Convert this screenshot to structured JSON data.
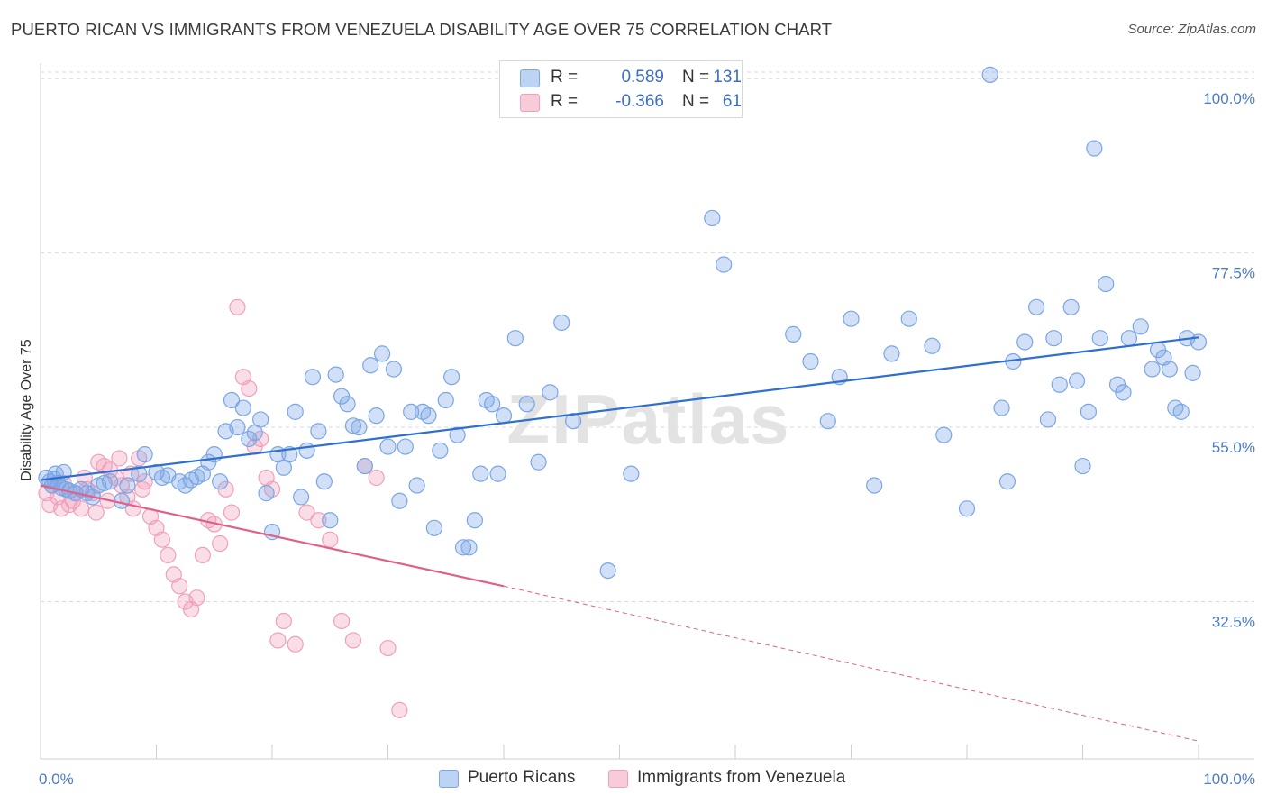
{
  "header": {
    "title": "PUERTO RICAN VS IMMIGRANTS FROM VENEZUELA DISABILITY AGE OVER 75 CORRELATION CHART",
    "source": "Source: ZipAtlas.com"
  },
  "watermark": "ZIPatlas",
  "colors": {
    "blue": "#7aa6e6",
    "blue_line": "#2f6fcf",
    "pink": "#f0a0bb",
    "pink_line": "#e0608a",
    "tick_text": "#4a7bc8",
    "grid": "#d9d9d9"
  },
  "legend": {
    "rows": [
      {
        "r_label": "R =",
        "r_value": "0.589",
        "n_label": "N =",
        "n_value": "131"
      },
      {
        "r_label": "R =",
        "r_value": "-0.366",
        "n_label": "N =",
        "n_value": "61"
      }
    ]
  },
  "chart_data": {
    "type": "scatter",
    "title": "PUERTO RICAN VS IMMIGRANTS FROM VENEZUELA DISABILITY AGE OVER 75 CORRELATION CHART",
    "xlabel": "",
    "ylabel": "Disability Age Over 75",
    "xlim": [
      0,
      100
    ],
    "ylim": [
      12.2,
      102
    ],
    "x_tick_labels": [
      "0.0%",
      "100.0%"
    ],
    "y_ticks": [
      32.5,
      55.0,
      77.5,
      100.0
    ],
    "y_tick_labels": [
      "32.5%",
      "55.0%",
      "77.5%",
      "100.0%"
    ],
    "grid": "horizontal dashed",
    "legend_placement": "top-center",
    "series": [
      {
        "name": "Puerto Ricans",
        "color": "#7aa6e6",
        "trend": {
          "x": [
            0,
            100
          ],
          "y": [
            48.2,
            66.6
          ]
        },
        "points": [
          [
            0.5,
            48.5
          ],
          [
            0.8,
            48.0
          ],
          [
            1.0,
            47.5
          ],
          [
            1.2,
            48.3
          ],
          [
            1.5,
            47.8
          ],
          [
            1.8,
            47.2
          ],
          [
            2.2,
            47.0
          ],
          [
            2.5,
            46.8
          ],
          [
            3.0,
            46.5
          ],
          [
            3.5,
            47.0
          ],
          [
            4.0,
            46.5
          ],
          [
            4.5,
            46.0
          ],
          [
            5.0,
            47.5
          ],
          [
            5.5,
            47.8
          ],
          [
            6.0,
            48.0
          ],
          [
            7.0,
            45.5
          ],
          [
            7.5,
            47.5
          ],
          [
            8.5,
            49.0
          ],
          [
            9.0,
            51.5
          ],
          [
            10.0,
            49.2
          ],
          [
            10.5,
            48.5
          ],
          [
            11.0,
            48.8
          ],
          [
            12.0,
            48.0
          ],
          [
            12.5,
            47.5
          ],
          [
            13.0,
            48.2
          ],
          [
            13.5,
            48.6
          ],
          [
            14.0,
            49.0
          ],
          [
            14.5,
            50.5
          ],
          [
            15.0,
            51.5
          ],
          [
            15.5,
            48.0
          ],
          [
            16.0,
            54.5
          ],
          [
            16.5,
            58.5
          ],
          [
            17.0,
            55.0
          ],
          [
            17.5,
            57.5
          ],
          [
            18.0,
            53.5
          ],
          [
            18.5,
            54.3
          ],
          [
            19.0,
            56.0
          ],
          [
            19.5,
            46.5
          ],
          [
            20.0,
            41.5
          ],
          [
            20.5,
            51.5
          ],
          [
            21.0,
            49.8
          ],
          [
            21.5,
            51.5
          ],
          [
            22.0,
            57.0
          ],
          [
            22.5,
            46.0
          ],
          [
            23.0,
            52.0
          ],
          [
            23.5,
            61.5
          ],
          [
            24.0,
            54.5
          ],
          [
            24.5,
            48.0
          ],
          [
            25.0,
            43.0
          ],
          [
            25.5,
            61.8
          ],
          [
            26.0,
            59.0
          ],
          [
            26.5,
            58.0
          ],
          [
            27.0,
            55.2
          ],
          [
            27.5,
            55.0
          ],
          [
            28.0,
            50.0
          ],
          [
            28.5,
            63.0
          ],
          [
            29.0,
            56.5
          ],
          [
            29.5,
            64.5
          ],
          [
            30.0,
            52.5
          ],
          [
            30.5,
            62.5
          ],
          [
            31.0,
            45.5
          ],
          [
            31.5,
            52.5
          ],
          [
            32.0,
            57.0
          ],
          [
            32.5,
            47.5
          ],
          [
            33.0,
            57.0
          ],
          [
            33.5,
            56.5
          ],
          [
            34.0,
            42.0
          ],
          [
            34.5,
            52.0
          ],
          [
            35.0,
            58.5
          ],
          [
            35.5,
            61.5
          ],
          [
            36.0,
            54.0
          ],
          [
            36.5,
            39.5
          ],
          [
            37.0,
            39.5
          ],
          [
            37.5,
            43.0
          ],
          [
            38.0,
            49.0
          ],
          [
            38.5,
            58.5
          ],
          [
            39.0,
            58.0
          ],
          [
            39.5,
            49.0
          ],
          [
            40.0,
            56.5
          ],
          [
            41.0,
            66.5
          ],
          [
            42.0,
            58.0
          ],
          [
            43.0,
            50.5
          ],
          [
            44.0,
            59.5
          ],
          [
            45.0,
            68.5
          ],
          [
            46.0,
            55.8
          ],
          [
            49.0,
            36.5
          ],
          [
            51.0,
            49.0
          ],
          [
            58.0,
            82.0
          ],
          [
            59.0,
            76.0
          ],
          [
            65.0,
            67.0
          ],
          [
            66.5,
            63.5
          ],
          [
            68.0,
            55.8
          ],
          [
            69.0,
            61.5
          ],
          [
            70.0,
            69.0
          ],
          [
            72.0,
            47.5
          ],
          [
            73.5,
            64.5
          ],
          [
            75.0,
            69.0
          ],
          [
            77.0,
            65.5
          ],
          [
            78.0,
            54.0
          ],
          [
            80.0,
            44.5
          ],
          [
            82.0,
            100.5
          ],
          [
            83.0,
            57.5
          ],
          [
            83.5,
            48.0
          ],
          [
            84.0,
            63.5
          ],
          [
            85.0,
            66.0
          ],
          [
            86.0,
            70.5
          ],
          [
            87.0,
            56.0
          ],
          [
            87.5,
            66.5
          ],
          [
            88.0,
            60.5
          ],
          [
            89.0,
            70.5
          ],
          [
            89.5,
            61.0
          ],
          [
            90.0,
            50.0
          ],
          [
            90.5,
            57.0
          ],
          [
            91.0,
            91.0
          ],
          [
            91.5,
            66.5
          ],
          [
            92.0,
            73.5
          ],
          [
            93.0,
            60.5
          ],
          [
            93.5,
            59.5
          ],
          [
            94.0,
            66.5
          ],
          [
            95.0,
            68.0
          ],
          [
            96.0,
            62.5
          ],
          [
            96.5,
            65.0
          ],
          [
            97.0,
            64.0
          ],
          [
            97.5,
            62.5
          ],
          [
            98.0,
            57.5
          ],
          [
            98.5,
            57.0
          ],
          [
            99.0,
            66.5
          ],
          [
            99.5,
            62.0
          ],
          [
            100.0,
            66.0
          ],
          [
            1.3,
            49.0
          ],
          [
            2.0,
            49.2
          ]
        ]
      },
      {
        "name": "Immigrants from Venezuela",
        "color": "#f0a0bb",
        "trend": {
          "x": [
            0,
            40
          ],
          "y": [
            47.5,
            34.5
          ],
          "dashed_to": {
            "x": 100,
            "y": 14.5
          }
        },
        "points": [
          [
            0.5,
            46.5
          ],
          [
            1.0,
            47.5
          ],
          [
            1.5,
            46.0
          ],
          [
            2.0,
            47.8
          ],
          [
            2.5,
            45.0
          ],
          [
            3.0,
            46.5
          ],
          [
            3.5,
            44.5
          ],
          [
            4.0,
            47.0
          ],
          [
            4.5,
            46.5
          ],
          [
            5.0,
            50.5
          ],
          [
            5.5,
            50.0
          ],
          [
            6.0,
            49.5
          ],
          [
            6.5,
            48.5
          ],
          [
            7.0,
            47.5
          ],
          [
            7.5,
            46.0
          ],
          [
            8.0,
            44.5
          ],
          [
            8.5,
            51.0
          ],
          [
            9.0,
            48.0
          ],
          [
            9.5,
            43.5
          ],
          [
            10.0,
            42.0
          ],
          [
            10.5,
            40.5
          ],
          [
            11.0,
            38.5
          ],
          [
            11.5,
            36.0
          ],
          [
            12.0,
            34.5
          ],
          [
            12.5,
            32.5
          ],
          [
            13.0,
            31.5
          ],
          [
            13.5,
            33.0
          ],
          [
            14.0,
            38.5
          ],
          [
            14.5,
            43.0
          ],
          [
            15.0,
            42.5
          ],
          [
            15.5,
            40.0
          ],
          [
            16.0,
            47.0
          ],
          [
            16.5,
            44.0
          ],
          [
            17.0,
            70.5
          ],
          [
            17.5,
            61.5
          ],
          [
            18.0,
            60.0
          ],
          [
            18.5,
            52.5
          ],
          [
            19.0,
            53.5
          ],
          [
            19.5,
            48.5
          ],
          [
            20.0,
            47.0
          ],
          [
            20.5,
            27.5
          ],
          [
            21.0,
            30.0
          ],
          [
            22.0,
            27.0
          ],
          [
            23.0,
            44.0
          ],
          [
            24.0,
            43.0
          ],
          [
            25.0,
            40.5
          ],
          [
            26.0,
            30.0
          ],
          [
            27.0,
            27.5
          ],
          [
            28.0,
            50.0
          ],
          [
            29.0,
            48.5
          ],
          [
            30.0,
            26.5
          ],
          [
            31.0,
            18.5
          ],
          [
            0.8,
            45.0
          ],
          [
            1.8,
            44.5
          ],
          [
            2.8,
            45.5
          ],
          [
            3.8,
            48.5
          ],
          [
            4.8,
            44.0
          ],
          [
            5.8,
            45.5
          ],
          [
            6.8,
            51.0
          ],
          [
            7.8,
            49.0
          ],
          [
            8.8,
            47.0
          ]
        ]
      }
    ]
  },
  "bottom_legend": {
    "items": [
      {
        "label": "Puerto Ricans"
      },
      {
        "label": "Immigrants from Venezuela"
      }
    ]
  }
}
